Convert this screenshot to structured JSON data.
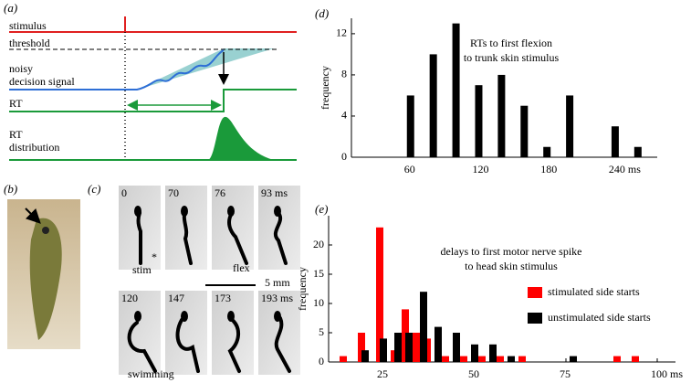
{
  "panel_labels": [
    "(a)",
    "(b)",
    "(c)",
    "(d)",
    "(e)"
  ],
  "diagram": {
    "labels": [
      "stimulus",
      "threshold",
      "noisy",
      "decision signal",
      "RT",
      "RT",
      "distribution"
    ]
  },
  "frames": {
    "times": [
      "0",
      "70",
      "76",
      "93 ms",
      "120",
      "147",
      "173",
      "193 ms"
    ],
    "notes": [
      "*",
      "stim",
      "flex",
      "swimming"
    ],
    "scale_bar": "5 mm"
  },
  "chart_data": [
    {
      "type": "bar",
      "title": "RTs to first flexion",
      "subtitle": "to trunk skin stimulus",
      "y_label": "frequency",
      "color": "#000000",
      "x": [
        60,
        80,
        100,
        120,
        140,
        160,
        180,
        200,
        240,
        260
      ],
      "values": [
        6,
        10,
        13,
        7,
        8,
        5,
        1,
        6,
        3,
        1
      ],
      "xlim": [
        8,
        277
      ],
      "ylim": [
        0,
        13.5
      ],
      "xticks": [
        60,
        120,
        180,
        {
          "value": 240,
          "label": "240 ms"
        }
      ],
      "yticks": [
        0,
        4,
        8,
        12
      ]
    },
    {
      "type": "bar",
      "title": "delays to first motor nerve spike",
      "subtitle": "to head skin stimulus",
      "y_label": "frequency",
      "series": [
        {
          "name": "stimulated side starts",
          "color": "#ff0000",
          "x": [
            14,
            19,
            24,
            28,
            31,
            34,
            37,
            42,
            47,
            52,
            57,
            63,
            89,
            94
          ],
          "values": [
            1,
            5,
            23,
            2,
            9,
            5,
            4,
            1,
            1,
            1,
            1,
            1,
            1,
            1
          ]
        },
        {
          "name": "unstimulated side starts",
          "color": "#000000",
          "x": [
            20,
            25,
            29,
            32,
            36,
            40,
            45,
            50,
            55,
            60,
            77
          ],
          "values": [
            2,
            4,
            5,
            5,
            12,
            6,
            5,
            3,
            3,
            1,
            1
          ]
        }
      ],
      "xlim": [
        10,
        105
      ],
      "ylim": [
        0,
        25
      ],
      "xticks": [
        25,
        50,
        75,
        {
          "value": 100,
          "label": "100 ms"
        }
      ],
      "yticks": [
        0,
        5,
        10,
        15,
        20
      ]
    }
  ]
}
